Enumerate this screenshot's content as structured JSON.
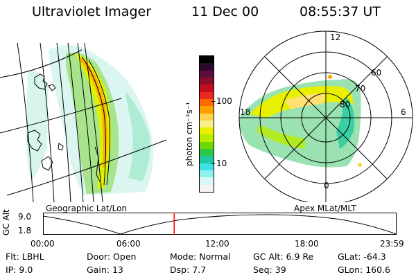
{
  "header": {
    "instrument": "Ultraviolet Imager",
    "date": "11 Dec 00",
    "time": "08:55:37 UT"
  },
  "left_panel": {
    "label": "Geographic Lat/Lon"
  },
  "colorbar": {
    "unit_label": "photon cm⁻²s⁻¹",
    "ticks": [
      "100",
      "10"
    ],
    "colors": [
      "#000000",
      "#2b0a2e",
      "#5a0f3a",
      "#8a0d2a",
      "#c01020",
      "#e62a20",
      "#ff6a00",
      "#ffa000",
      "#ffd24d",
      "#f6f08a",
      "#e8f000",
      "#b8ec00",
      "#6cd800",
      "#2fc64a",
      "#20c8a0",
      "#40e0e8",
      "#8ff0f0",
      "#d8f8f8",
      "#f4f4f4"
    ]
  },
  "right_panel": {
    "label": "Apex MLat/MLT",
    "mlt_labels": [
      "12",
      "18",
      "6",
      "0"
    ],
    "lat_labels": [
      "60",
      "70",
      "80"
    ]
  },
  "altitude_plot": {
    "ylabel": "GC Alt",
    "yticks": [
      "9.0",
      "1.8"
    ],
    "xticks": [
      "00:00",
      "06:00",
      "12:00",
      "18:00",
      "23:59"
    ],
    "current_time_fraction": 0.371,
    "colors": {
      "marker": "#ff0000"
    }
  },
  "info": {
    "row1": [
      {
        "key": "Flt:",
        "value": "LBHL"
      },
      {
        "key": "Door:",
        "value": "Open"
      },
      {
        "key": "Mode:",
        "value": "Normal"
      },
      {
        "key": "GC Alt:",
        "value": "6.9 Re"
      },
      {
        "key": "GLat:",
        "value": "-64.3"
      }
    ],
    "row2": [
      {
        "key": "IP:",
        "value": "9.0"
      },
      {
        "key": "Gain:",
        "value": "13"
      },
      {
        "key": "Dsp:",
        "value": "7.7"
      },
      {
        "key": "Seq:",
        "value": "39"
      },
      {
        "key": "GLon:",
        "value": "160.6"
      }
    ]
  }
}
